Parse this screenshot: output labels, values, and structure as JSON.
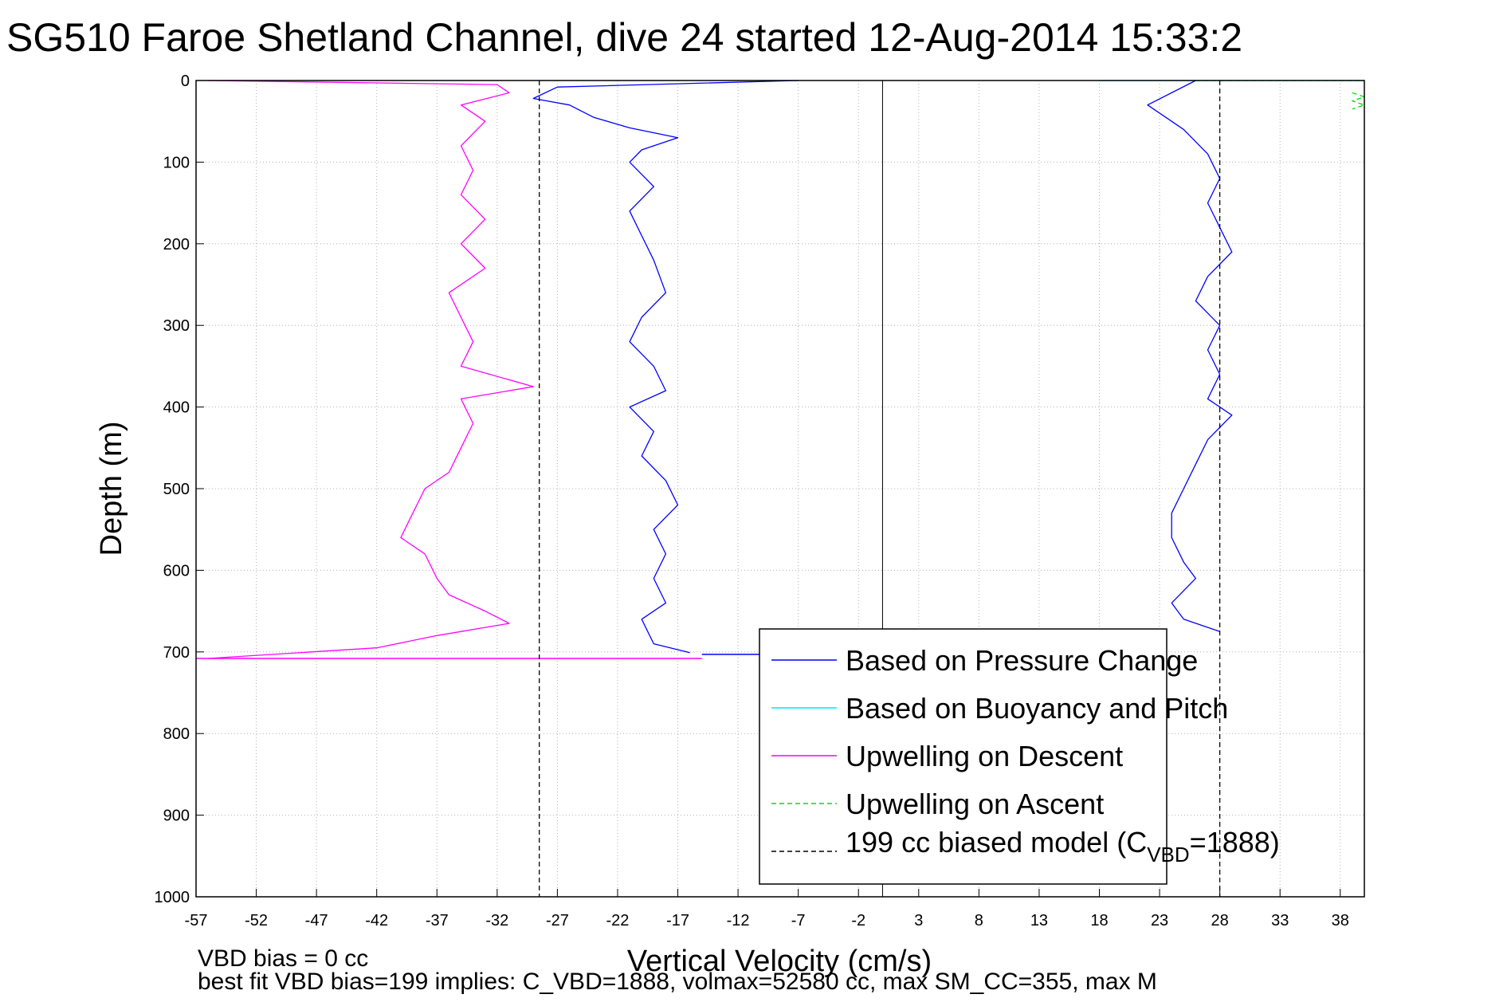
{
  "chart_data": {
    "type": "line",
    "title": "SG510 Faroe Shetland Channel, dive 24 started 12-Aug-2014 15:33:2",
    "xlabel": "Vertical Velocity (cm/s)",
    "ylabel": "Depth (m)",
    "xlim": [
      -57,
      40
    ],
    "ylim": [
      0,
      1000
    ],
    "y_reversed": true,
    "grid": true,
    "x_ticks": [
      -57,
      -52,
      -47,
      -42,
      -37,
      -32,
      -27,
      -22,
      -17,
      -12,
      -7,
      -2,
      3,
      8,
      13,
      18,
      23,
      28,
      33,
      38
    ],
    "y_ticks": [
      0,
      100,
      200,
      300,
      400,
      500,
      600,
      700,
      800,
      900,
      1000
    ],
    "legend_position": "lower-right",
    "series": [
      {
        "name": "Based on Pressure Change",
        "color": "#0000ff",
        "style": "solid",
        "points": [
          [
            -7,
            0
          ],
          [
            -27,
            8
          ],
          [
            -29,
            22
          ],
          [
            -26,
            30
          ],
          [
            -24,
            45
          ],
          [
            -21,
            58
          ],
          [
            -17,
            70
          ],
          [
            -20,
            85
          ],
          [
            -21,
            100
          ],
          [
            -19,
            130
          ],
          [
            -21,
            160
          ],
          [
            -20,
            190
          ],
          [
            -19,
            220
          ],
          [
            -18,
            260
          ],
          [
            -20,
            290
          ],
          [
            -21,
            320
          ],
          [
            -19,
            350
          ],
          [
            -18,
            380
          ],
          [
            -21,
            400
          ],
          [
            -19,
            430
          ],
          [
            -20,
            460
          ],
          [
            -18,
            490
          ],
          [
            -17,
            520
          ],
          [
            -19,
            550
          ],
          [
            -18,
            580
          ],
          [
            -19,
            610
          ],
          [
            -18,
            640
          ],
          [
            -20,
            660
          ],
          [
            -19,
            690
          ],
          [
            -16,
            701
          ]
        ]
      },
      {
        "name": "Based on Pressure Change",
        "color": "#0000ff",
        "style": "solid",
        "points": [
          [
            26,
            0
          ],
          [
            22,
            30
          ],
          [
            25,
            60
          ],
          [
            27,
            90
          ],
          [
            28,
            120
          ],
          [
            27,
            150
          ],
          [
            28,
            180
          ],
          [
            29,
            210
          ],
          [
            27,
            240
          ],
          [
            26,
            270
          ],
          [
            28,
            300
          ],
          [
            27,
            330
          ],
          [
            28,
            360
          ],
          [
            27,
            390
          ],
          [
            29,
            410
          ],
          [
            27,
            440
          ],
          [
            26,
            470
          ],
          [
            25,
            500
          ],
          [
            24,
            530
          ],
          [
            24,
            560
          ],
          [
            25,
            590
          ],
          [
            26,
            610
          ],
          [
            24,
            640
          ],
          [
            25,
            660
          ],
          [
            28,
            675
          ]
        ]
      },
      {
        "name": "Based on Buoyancy and Pitch",
        "color": "#00e5e5",
        "style": "solid",
        "points": [
          [
            18,
            0
          ],
          [
            40,
            0
          ]
        ]
      },
      {
        "name": "Upwelling on Descent",
        "color": "#ff00ff",
        "style": "solid",
        "points": [
          [
            -56,
            0
          ],
          [
            -32,
            5
          ],
          [
            -31,
            15
          ],
          [
            -35,
            30
          ],
          [
            -33,
            50
          ],
          [
            -35,
            80
          ],
          [
            -34,
            110
          ],
          [
            -35,
            140
          ],
          [
            -33,
            170
          ],
          [
            -35,
            200
          ],
          [
            -33,
            230
          ],
          [
            -36,
            260
          ],
          [
            -35,
            290
          ],
          [
            -34,
            320
          ],
          [
            -35,
            350
          ],
          [
            -29,
            375
          ],
          [
            -35,
            390
          ],
          [
            -34,
            420
          ],
          [
            -35,
            450
          ],
          [
            -36,
            480
          ],
          [
            -38,
            500
          ],
          [
            -39,
            530
          ],
          [
            -40,
            560
          ],
          [
            -38,
            580
          ],
          [
            -37,
            610
          ],
          [
            -36,
            630
          ],
          [
            -33,
            650
          ],
          [
            -31,
            665
          ],
          [
            -37,
            680
          ],
          [
            -42,
            695
          ],
          [
            -56,
            708
          ]
        ]
      },
      {
        "name": "Upwelling on Ascent",
        "color": "#00e000",
        "style": "dashed",
        "points": [
          [
            26,
            0
          ],
          [
            40,
            0
          ]
        ]
      },
      {
        "name": "Upwelling on Ascent",
        "color": "#00e000",
        "style": "dashed",
        "points": [
          [
            39,
            15
          ],
          [
            40,
            20
          ],
          [
            39,
            25
          ],
          [
            40,
            30
          ],
          [
            39,
            35
          ]
        ]
      },
      {
        "name": "199 cc biased model (C_VBD=1888)",
        "color": "#000000",
        "style": "dashed",
        "points": [
          [
            -28.5,
            0
          ],
          [
            -28.5,
            1000
          ]
        ]
      },
      {
        "name": "199 cc biased model (C_VBD=1888)",
        "color": "#000000",
        "style": "dashed",
        "points": [
          [
            28,
            0
          ],
          [
            28,
            1000
          ]
        ]
      }
    ],
    "zero_line_x": 0,
    "horizontal_lines_at_depth": [
      {
        "y": 708,
        "x": [
          -57,
          -15
        ],
        "color": "#ff00ff"
      },
      {
        "y": 703,
        "x": [
          -15,
          14
        ],
        "color": "#0000ff"
      }
    ],
    "legend": {
      "entries": [
        {
          "label": "Based on Pressure Change",
          "color": "#0000ff",
          "style": "solid"
        },
        {
          "label": "Based on Buoyancy and Pitch",
          "color": "#00e5e5",
          "style": "solid"
        },
        {
          "label": "Upwelling on Descent",
          "color": "#ff00ff",
          "style": "solid"
        },
        {
          "label": "Upwelling on Ascent",
          "color": "#00e000",
          "style": "dashed"
        },
        {
          "label_main": "199 cc biased model (C",
          "label_sub": "VBD",
          "label_tail": "=1888)",
          "color": "#000000",
          "style": "dashed"
        }
      ]
    },
    "footnotes": {
      "line1": "VBD bias = 0 cc",
      "line2": "best fit VBD bias=199 implies: C_VBD=1888, volmax=52580 cc, max SM_CC=355, max M"
    }
  }
}
